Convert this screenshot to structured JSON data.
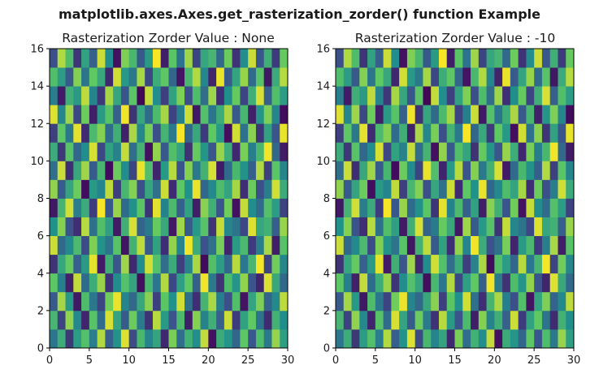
{
  "figure_title": "matplotlib.axes.Axes.get_rasterization_zorder() function Example",
  "chart_data": [
    {
      "type": "heatmap",
      "title": "Rasterization Zorder Value : None",
      "xlabel": "",
      "ylabel": "",
      "xlim": [
        0,
        30
      ],
      "ylim": [
        0,
        16
      ],
      "xticks": [
        0,
        5,
        10,
        15,
        20,
        25,
        30
      ],
      "yticks": [
        0,
        2,
        4,
        6,
        8,
        10,
        12,
        14,
        16
      ],
      "colormap": "viridis",
      "grid": false,
      "grid_shape": [
        16,
        30
      ],
      "values": [
        [
          0.39,
          0.62,
          0.17,
          0.55,
          0.71,
          0.42,
          0.88,
          0.3,
          0.51,
          0.95,
          0.23,
          0.67,
          0.45,
          0.58,
          0.12,
          0.79,
          0.36,
          0.64,
          0.48,
          0.91,
          0.05,
          0.61,
          0.52,
          0.33,
          0.74,
          0.27,
          0.69,
          0.41,
          0.84,
          0.56
        ],
        [
          0.66,
          0.2,
          0.83,
          0.47,
          0.11,
          0.72,
          0.35,
          0.94,
          0.58,
          0.29,
          0.77,
          0.41,
          0.15,
          0.89,
          0.54,
          0.26,
          0.68,
          0.09,
          0.81,
          0.44,
          0.63,
          0.31,
          0.92,
          0.18,
          0.57,
          0.75,
          0.38,
          0.13,
          0.64,
          0.49
        ],
        [
          0.28,
          0.86,
          0.53,
          0.07,
          0.69,
          0.4,
          0.21,
          0.78,
          0.97,
          0.45,
          0.34,
          0.6,
          0.82,
          0.19,
          0.73,
          0.5,
          0.93,
          0.37,
          0.14,
          0.65,
          0.87,
          0.43,
          0.24,
          0.7,
          0.06,
          0.58,
          0.8,
          0.32,
          0.47,
          0.9
        ],
        [
          0.74,
          0.43,
          0.1,
          0.91,
          0.35,
          0.62,
          0.84,
          0.16,
          0.49,
          0.71,
          0.58,
          0.04,
          0.67,
          0.39,
          0.88,
          0.22,
          0.56,
          0.75,
          0.3,
          0.98,
          0.41,
          0.15,
          0.69,
          0.52,
          0.83,
          0.26,
          0.11,
          0.95,
          0.6,
          0.34
        ],
        [
          0.15,
          0.59,
          0.76,
          0.31,
          0.54,
          0.96,
          0.08,
          0.63,
          0.27,
          0.85,
          0.12,
          0.48,
          0.93,
          0.71,
          0.36,
          0.61,
          0.19,
          0.44,
          0.87,
          0.03,
          0.7,
          0.55,
          0.33,
          0.89,
          0.4,
          0.66,
          0.99,
          0.21,
          0.78,
          0.46
        ],
        [
          0.92,
          0.34,
          0.47,
          0.68,
          0.23,
          0.8,
          0.51,
          0.39,
          0.72,
          0.06,
          0.64,
          0.9,
          0.28,
          0.57,
          0.14,
          0.83,
          0.45,
          0.98,
          0.62,
          0.25,
          0.37,
          0.79,
          0.11,
          0.54,
          0.68,
          0.18,
          0.43,
          0.87,
          0.09,
          0.72
        ],
        [
          0.5,
          0.81,
          0.25,
          0.14,
          0.89,
          0.37,
          0.7,
          0.56,
          0.08,
          0.63,
          0.94,
          0.32,
          0.41,
          0.76,
          0.6,
          0.07,
          0.85,
          0.29,
          0.53,
          0.72,
          0.16,
          0.91,
          0.46,
          0.38,
          0.22,
          0.95,
          0.59,
          0.64,
          0.3,
          0.84
        ],
        [
          0.07,
          0.65,
          0.93,
          0.42,
          0.61,
          0.18,
          0.99,
          0.27,
          0.84,
          0.35,
          0.5,
          0.73,
          0.16,
          0.96,
          0.44,
          0.68,
          0.31,
          0.57,
          0.09,
          0.82,
          0.63,
          0.26,
          0.78,
          0.05,
          0.91,
          0.49,
          0.35,
          0.71,
          0.55,
          0.2
        ],
        [
          0.83,
          0.29,
          0.58,
          0.77,
          0.04,
          0.53,
          0.45,
          0.9,
          0.19,
          0.66,
          0.81,
          0.24,
          0.59,
          0.37,
          0.92,
          0.13,
          0.74,
          0.5,
          0.97,
          0.33,
          0.47,
          0.69,
          0.58,
          0.86,
          0.14,
          0.77,
          0.24,
          0.42,
          0.93,
          0.61
        ],
        [
          0.36,
          0.92,
          0.14,
          0.6,
          0.85,
          0.29,
          0.66,
          0.03,
          0.77,
          0.48,
          0.21,
          0.97,
          0.7,
          0.11,
          0.53,
          0.89,
          0.26,
          0.81,
          0.4,
          0.64,
          0.94,
          0.08,
          0.35,
          0.67,
          0.51,
          0.3,
          0.88,
          0.19,
          0.73,
          0.45
        ],
        [
          0.61,
          0.17,
          0.72,
          0.33,
          0.48,
          0.94,
          0.22,
          0.57,
          0.44,
          0.91,
          0.36,
          0.65,
          0.05,
          0.83,
          0.28,
          0.7,
          0.58,
          0.15,
          0.76,
          0.52,
          0.27,
          0.84,
          0.62,
          0.12,
          0.79,
          0.43,
          0.67,
          0.98,
          0.34,
          0.08
        ],
        [
          0.19,
          0.74,
          0.4,
          0.96,
          0.13,
          0.68,
          0.81,
          0.35,
          0.63,
          0.1,
          0.87,
          0.46,
          0.79,
          0.24,
          0.65,
          0.41,
          0.99,
          0.33,
          0.6,
          0.18,
          0.75,
          0.53,
          0.04,
          0.93,
          0.37,
          0.82,
          0.16,
          0.57,
          0.26,
          0.97
        ],
        [
          0.95,
          0.46,
          0.85,
          0.22,
          0.77,
          0.09,
          0.54,
          0.72,
          0.31,
          0.98,
          0.15,
          0.59,
          0.35,
          0.68,
          0.86,
          0.2,
          0.43,
          0.92,
          0.07,
          0.71,
          0.39,
          0.62,
          0.87,
          0.28,
          0.66,
          0.1,
          0.52,
          0.8,
          0.45,
          0.03
        ],
        [
          0.42,
          0.08,
          0.63,
          0.54,
          0.9,
          0.45,
          0.17,
          0.86,
          0.59,
          0.26,
          0.73,
          0.02,
          0.91,
          0.48,
          0.19,
          0.57,
          0.8,
          0.24,
          0.69,
          0.36,
          0.85,
          0.14,
          0.49,
          0.76,
          0.21,
          0.63,
          0.94,
          0.31,
          0.7,
          0.55
        ],
        [
          0.7,
          0.55,
          0.28,
          0.81,
          0.39,
          0.75,
          0.6,
          0.12,
          0.93,
          0.53,
          0.4,
          0.86,
          0.22,
          0.62,
          0.74,
          0.33,
          0.06,
          0.67,
          0.88,
          0.46,
          0.11,
          0.97,
          0.29,
          0.58,
          0.84,
          0.35,
          0.72,
          0.07,
          0.61,
          0.89
        ],
        [
          0.24,
          0.88,
          0.69,
          0.16,
          0.57,
          0.31,
          0.92,
          0.48,
          0.05,
          0.8,
          0.67,
          0.28,
          0.54,
          0.99,
          0.09,
          0.73,
          0.38,
          0.85,
          0.21,
          0.59,
          0.66,
          0.34,
          0.77,
          0.15,
          0.48,
          0.92,
          0.27,
          0.63,
          0.18,
          0.76
        ]
      ]
    },
    {
      "type": "heatmap",
      "title": "Rasterization Zorder Value : -10",
      "xlabel": "",
      "ylabel": "",
      "xlim": [
        0,
        30
      ],
      "ylim": [
        0,
        16
      ],
      "xticks": [
        0,
        5,
        10,
        15,
        20,
        25,
        30
      ],
      "yticks": [
        0,
        2,
        4,
        6,
        8,
        10,
        12,
        14,
        16
      ],
      "colormap": "viridis",
      "grid": false,
      "grid_shape": [
        16,
        30
      ],
      "same_values_as_panel": 0
    }
  ]
}
